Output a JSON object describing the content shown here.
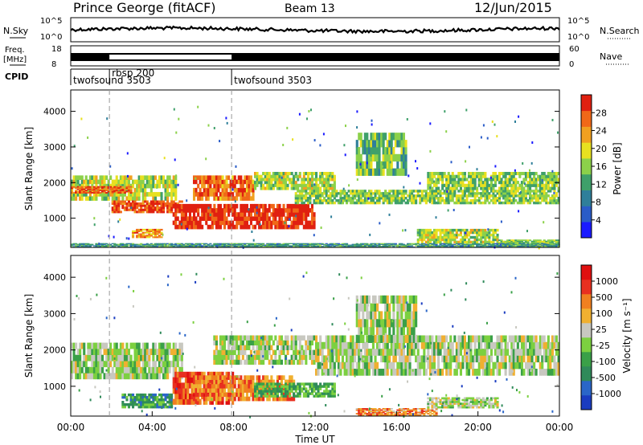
{
  "header": {
    "radar_title": "Prince George (fitACF)",
    "beam": "Beam 13",
    "date": "12/Jun/2015"
  },
  "top_panels": {
    "nsky_label": "N.Sky",
    "nsky_ticks": [
      "10^5",
      "10^0"
    ],
    "nsearch_label": "N.Search",
    "nsearch_ticks": [
      "10^5",
      "10^0"
    ],
    "freq_label": "Freq.",
    "freq_unit": "[MHz]",
    "freq_ticks": [
      "18",
      "8"
    ],
    "nave_label": "Nave",
    "nave_ticks": [
      "60",
      "0"
    ],
    "cpid_label": "CPID",
    "cpid_segments": [
      {
        "name": "twofsound 3503",
        "start_hour": 0
      },
      {
        "name": "rbsp 200",
        "start_hour": 1.9
      },
      {
        "name": "twofsound 3503",
        "start_hour": 7.9
      }
    ]
  },
  "chart_data": [
    {
      "type": "heatmap",
      "title": "",
      "quantity": "Power",
      "ylabel": "Slant Range [km]",
      "xlabel": "",
      "xlim_hours": [
        0,
        24
      ],
      "ylim_km": [
        180,
        4600
      ],
      "yticks": [
        "1000",
        "2000",
        "3000",
        "4000"
      ],
      "colorbar": {
        "label": "Power [dB]",
        "range": [
          0,
          30
        ],
        "tick_labels": [
          "4",
          "8",
          "12",
          "16",
          "20",
          "24",
          "28"
        ],
        "colors": [
          "#1a1aff",
          "#2a5cc8",
          "#2f7f9a",
          "#3fa06a",
          "#8cd14a",
          "#e8e020",
          "#f0a020",
          "#f06818",
          "#e02010"
        ]
      },
      "echo_regions": [
        {
          "hours": [
            0,
            5.2
          ],
          "range_km": [
            1500,
            2200
          ],
          "level": 0.55
        },
        {
          "hours": [
            0,
            3.0
          ],
          "range_km": [
            1700,
            1900
          ],
          "level": 0.85
        },
        {
          "hours": [
            2.0,
            5.5
          ],
          "range_km": [
            1150,
            1500
          ],
          "level": 0.9
        },
        {
          "hours": [
            3.0,
            4.5
          ],
          "range_km": [
            450,
            700
          ],
          "level": 0.75
        },
        {
          "hours": [
            5.0,
            12.0
          ],
          "range_km": [
            700,
            1400
          ],
          "level": 0.95
        },
        {
          "hours": [
            6.0,
            9.0
          ],
          "range_km": [
            1500,
            2200
          ],
          "level": 0.8
        },
        {
          "hours": [
            9.0,
            13.0
          ],
          "range_km": [
            1800,
            2300
          ],
          "level": 0.55
        },
        {
          "hours": [
            11.0,
            24.0
          ],
          "range_km": [
            1400,
            1800
          ],
          "level": 0.5
        },
        {
          "hours": [
            14.0,
            16.5
          ],
          "range_km": [
            2200,
            3400
          ],
          "level": 0.45
        },
        {
          "hours": [
            17.5,
            24.0
          ],
          "range_km": [
            1800,
            2300
          ],
          "level": 0.5
        },
        {
          "hours": [
            17.0,
            21.0
          ],
          "range_km": [
            300,
            700
          ],
          "level": 0.55
        },
        {
          "hours": [
            21.0,
            24.0
          ],
          "range_km": [
            200,
            400
          ],
          "level": 0.5
        },
        {
          "hours": [
            0,
            24.0
          ],
          "range_km": [
            180,
            300
          ],
          "level": 0.35
        }
      ]
    },
    {
      "type": "heatmap",
      "title": "",
      "quantity": "Velocity",
      "ylabel": "Slant Range [km]",
      "xlabel": "Time UT",
      "xlim_hours": [
        0,
        24
      ],
      "ylim_km": [
        180,
        4600
      ],
      "yticks": [
        "1000",
        "2000",
        "3000",
        "4000"
      ],
      "xticks": [
        "00:00",
        "04:00",
        "08:00",
        "12:00",
        "16:00",
        "20:00",
        "00:00"
      ],
      "colorbar": {
        "label": "Velocity [m s⁻¹]",
        "range": [
          -1000,
          1000
        ],
        "tick_labels": [
          "1000",
          "500",
          "100",
          "25",
          "-25",
          "-100",
          "-500",
          "-1000"
        ],
        "colors": [
          "#1a3cc0",
          "#2a66c8",
          "#2f8a5a",
          "#3aa048",
          "#7cd040",
          "#c8c8c0",
          "#f0b030",
          "#f08020",
          "#e83020",
          "#e01010"
        ]
      },
      "echo_regions": [
        {
          "hours": [
            0,
            5.5
          ],
          "range_km": [
            1200,
            2200
          ],
          "level": 0.5
        },
        {
          "hours": [
            2.5,
            5.0
          ],
          "range_km": [
            400,
            800
          ],
          "level": 0.3
        },
        {
          "hours": [
            5.0,
            8.0
          ],
          "range_km": [
            500,
            1400
          ],
          "level": 0.82
        },
        {
          "hours": [
            6.0,
            11.0
          ],
          "range_km": [
            600,
            1300
          ],
          "level": 0.75
        },
        {
          "hours": [
            9.0,
            13.0
          ],
          "range_km": [
            700,
            1100
          ],
          "level": 0.35
        },
        {
          "hours": [
            7.0,
            12.0
          ],
          "range_km": [
            1600,
            2400
          ],
          "level": 0.5
        },
        {
          "hours": [
            12.0,
            24.0
          ],
          "range_km": [
            1300,
            2400
          ],
          "level": 0.5
        },
        {
          "hours": [
            14.0,
            17.0
          ],
          "range_km": [
            2200,
            3500
          ],
          "level": 0.5
        },
        {
          "hours": [
            14.0,
            18.0
          ],
          "range_km": [
            200,
            400
          ],
          "level": 0.72
        },
        {
          "hours": [
            17.5,
            21.0
          ],
          "range_km": [
            400,
            700
          ],
          "level": 0.5
        }
      ]
    }
  ]
}
